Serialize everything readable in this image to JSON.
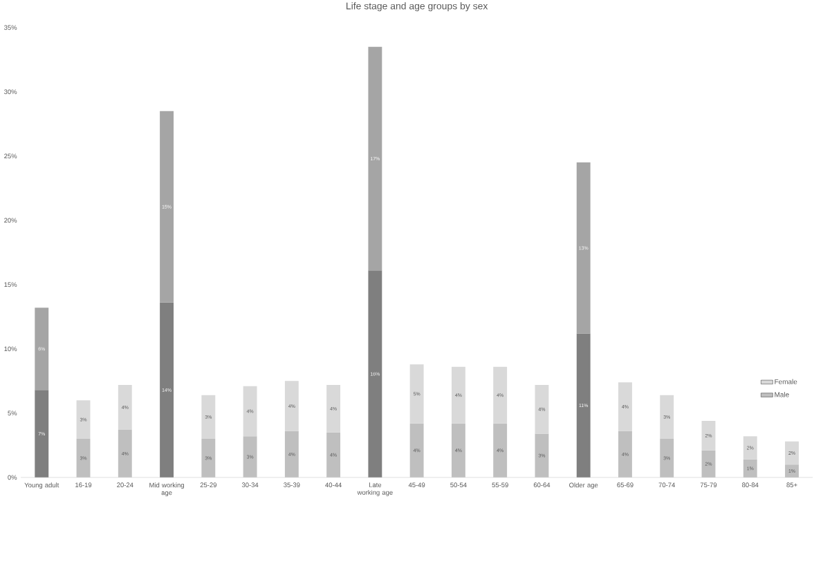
{
  "chart_data": {
    "type": "bar",
    "stacked": true,
    "title": "Life stage and age groups by sex",
    "categories": [
      "Young adult",
      "16-19",
      "20-24",
      "Mid working age",
      "25-29",
      "30-34",
      "35-39",
      "40-44",
      "Late working age",
      "45-49",
      "50-54",
      "55-59",
      "60-64",
      "Older age",
      "65-69",
      "70-74",
      "75-79",
      "80-84",
      "85+"
    ],
    "series": [
      {
        "name": "Male",
        "color": "#bfbfbf",
        "colors": [
          "#7f7f7f",
          "#bfbfbf",
          "#bfbfbf",
          "#7f7f7f",
          "#bfbfbf",
          "#bfbfbf",
          "#bfbfbf",
          "#bfbfbf",
          "#7f7f7f",
          "#bfbfbf",
          "#bfbfbf",
          "#bfbfbf",
          "#bfbfbf",
          "#7f7f7f",
          "#bfbfbf",
          "#bfbfbf",
          "#bfbfbf",
          "#bfbfbf",
          "#bfbfbf"
        ],
        "values": [
          6.8,
          3.0,
          3.7,
          13.6,
          3.0,
          3.2,
          3.6,
          3.5,
          16.1,
          4.2,
          4.2,
          4.2,
          3.4,
          11.2,
          3.6,
          3.0,
          2.1,
          1.4,
          1.0
        ],
        "value_labels": [
          "7%",
          "3%",
          "4%",
          "14%",
          "3%",
          "3%",
          "4%",
          "4%",
          "16%",
          "4%",
          "4%",
          "4%",
          "3%",
          "11%",
          "4%",
          "3%",
          "2%",
          "1%",
          "1%"
        ]
      },
      {
        "name": "Female",
        "color": "#d9d9d9",
        "colors": [
          "#a5a5a5",
          "#d9d9d9",
          "#d9d9d9",
          "#a5a5a5",
          "#d9d9d9",
          "#d9d9d9",
          "#d9d9d9",
          "#d9d9d9",
          "#a5a5a5",
          "#d9d9d9",
          "#d9d9d9",
          "#d9d9d9",
          "#d9d9d9",
          "#a5a5a5",
          "#d9d9d9",
          "#d9d9d9",
          "#d9d9d9",
          "#d9d9d9",
          "#d9d9d9"
        ],
        "values": [
          6.4,
          3.0,
          3.5,
          14.9,
          3.4,
          3.9,
          3.9,
          3.7,
          17.4,
          4.6,
          4.4,
          4.4,
          3.8,
          13.3,
          3.8,
          3.4,
          2.3,
          1.8,
          1.8
        ],
        "value_labels": [
          "6%",
          "3%",
          "4%",
          "15%",
          "3%",
          "4%",
          "4%",
          "4%",
          "17%",
          "5%",
          "4%",
          "4%",
          "4%",
          "13%",
          "4%",
          "3%",
          "2%",
          "2%",
          "2%"
        ]
      }
    ],
    "ylim": [
      0,
      35
    ],
    "yticks": [
      {
        "value": 0,
        "label": "0%"
      },
      {
        "value": 5,
        "label": "5%"
      },
      {
        "value": 10,
        "label": "10%"
      },
      {
        "value": 15,
        "label": "15%"
      },
      {
        "value": 20,
        "label": "20%"
      },
      {
        "value": 25,
        "label": "25%"
      },
      {
        "value": 30,
        "label": "30%"
      },
      {
        "value": 35,
        "label": "35%"
      }
    ],
    "legend": "bottom right",
    "grid": false
  }
}
